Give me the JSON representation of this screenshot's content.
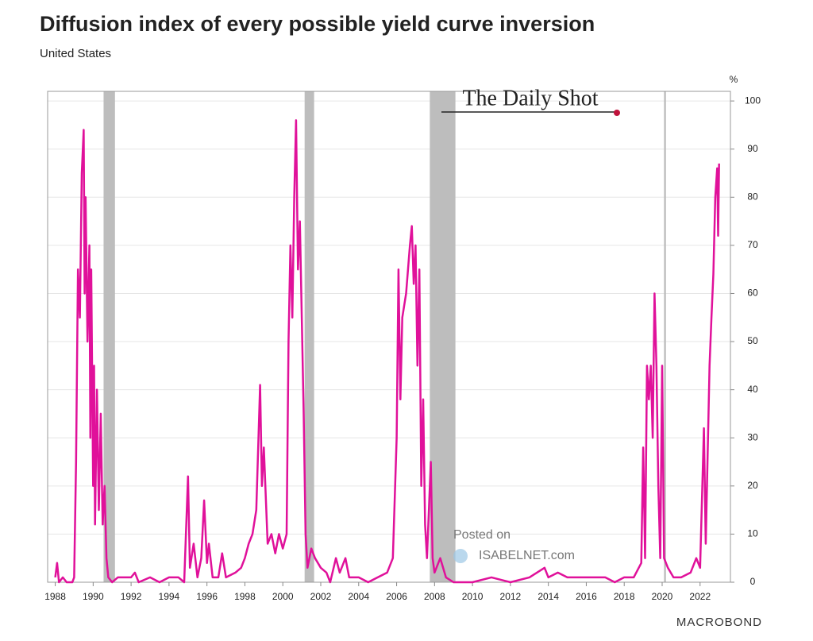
{
  "chart_data": {
    "type": "line",
    "title": "Diffusion index of every possible yield curve inversion",
    "subtitle": "United States",
    "y_unit": "%",
    "watermark": "The Daily Shot",
    "posted_on": "Posted on",
    "posted_site": "ISABELNET.com",
    "source": "MACROBOND",
    "xlim": [
      1987.6,
      2023.6
    ],
    "xticks": [
      1988,
      1990,
      1992,
      1994,
      1996,
      1998,
      2000,
      2002,
      2004,
      2006,
      2008,
      2010,
      2012,
      2014,
      2016,
      2018,
      2020,
      2022
    ],
    "ylim": [
      0,
      102
    ],
    "yticks": [
      0,
      10,
      20,
      30,
      40,
      50,
      60,
      70,
      80,
      90,
      100
    ],
    "grid": true,
    "recession_color": "#bdbdbd",
    "recessions": [
      [
        1990.55,
        1991.15
      ],
      [
        2001.15,
        2001.65
      ],
      [
        2007.75,
        2009.1
      ],
      [
        2020.1,
        2020.2
      ]
    ],
    "series": [
      {
        "name": "Diffusion index",
        "color": "#e0119a",
        "x": [
          1988.0,
          1988.1,
          1988.2,
          1988.4,
          1988.6,
          1988.9,
          1989.0,
          1989.1,
          1989.2,
          1989.3,
          1989.4,
          1989.5,
          1989.55,
          1989.6,
          1989.7,
          1989.8,
          1989.85,
          1989.9,
          1990.0,
          1990.05,
          1990.1,
          1990.2,
          1990.3,
          1990.4,
          1990.5,
          1990.6,
          1990.7,
          1990.8,
          1991.0,
          1991.3,
          1992.0,
          1992.2,
          1992.4,
          1993.0,
          1993.5,
          1994.0,
          1994.5,
          1994.8,
          1995.0,
          1995.1,
          1995.3,
          1995.5,
          1995.7,
          1995.85,
          1996.0,
          1996.1,
          1996.3,
          1996.6,
          1996.8,
          1997.0,
          1997.5,
          1997.8,
          1998.0,
          1998.2,
          1998.4,
          1998.6,
          1998.8,
          1998.9,
          1999.0,
          1999.2,
          1999.4,
          1999.6,
          1999.8,
          2000.0,
          2000.2,
          2000.3,
          2000.4,
          2000.5,
          2000.6,
          2000.7,
          2000.8,
          2000.9,
          2001.0,
          2001.1,
          2001.2,
          2001.3,
          2001.5,
          2001.7,
          2002.0,
          2002.3,
          2002.5,
          2002.8,
          2003.0,
          2003.3,
          2003.5,
          2004.0,
          2004.5,
          2005.0,
          2005.5,
          2005.8,
          2006.0,
          2006.1,
          2006.2,
          2006.3,
          2006.5,
          2006.7,
          2006.8,
          2006.9,
          2007.0,
          2007.1,
          2007.2,
          2007.3,
          2007.4,
          2007.5,
          2007.6,
          2007.8,
          2007.9,
          2008.0,
          2008.3,
          2008.6,
          2009.0,
          2010.0,
          2011.0,
          2012.0,
          2013.0,
          2013.8,
          2014.0,
          2014.5,
          2015.0,
          2016.0,
          2017.0,
          2017.5,
          2018.0,
          2018.5,
          2018.9,
          2019.0,
          2019.1,
          2019.2,
          2019.3,
          2019.4,
          2019.5,
          2019.6,
          2019.7,
          2019.8,
          2019.9,
          2020.0,
          2020.1,
          2020.3,
          2020.6,
          2021.0,
          2021.5,
          2021.8,
          2022.0,
          2022.2,
          2022.3,
          2022.5,
          2022.6,
          2022.7,
          2022.8,
          2022.9,
          2022.95,
          2023.0
        ],
        "values": [
          1,
          4,
          0,
          1,
          0,
          0,
          1,
          25,
          65,
          55,
          85,
          94,
          60,
          80,
          50,
          70,
          30,
          65,
          20,
          45,
          12,
          40,
          15,
          35,
          12,
          20,
          5,
          1,
          0,
          1,
          1,
          2,
          0,
          1,
          0,
          1,
          1,
          0,
          22,
          3,
          8,
          1,
          5,
          17,
          4,
          8,
          1,
          1,
          6,
          1,
          2,
          3,
          5,
          8,
          10,
          15,
          41,
          20,
          28,
          8,
          10,
          6,
          10,
          7,
          10,
          50,
          70,
          55,
          80,
          96,
          65,
          75,
          55,
          35,
          10,
          3,
          7,
          5,
          3,
          2,
          0,
          5,
          2,
          5,
          1,
          1,
          0,
          1,
          2,
          5,
          30,
          65,
          38,
          55,
          60,
          70,
          74,
          62,
          70,
          45,
          65,
          20,
          38,
          12,
          5,
          25,
          5,
          2,
          5,
          1,
          0,
          0,
          1,
          0,
          1,
          3,
          1,
          2,
          1,
          1,
          1,
          0,
          1,
          1,
          4,
          28,
          5,
          45,
          38,
          45,
          30,
          60,
          45,
          20,
          5,
          45,
          5,
          3,
          1,
          1,
          2,
          5,
          3,
          32,
          8,
          45,
          55,
          64,
          80,
          86,
          72,
          87
        ]
      }
    ]
  }
}
